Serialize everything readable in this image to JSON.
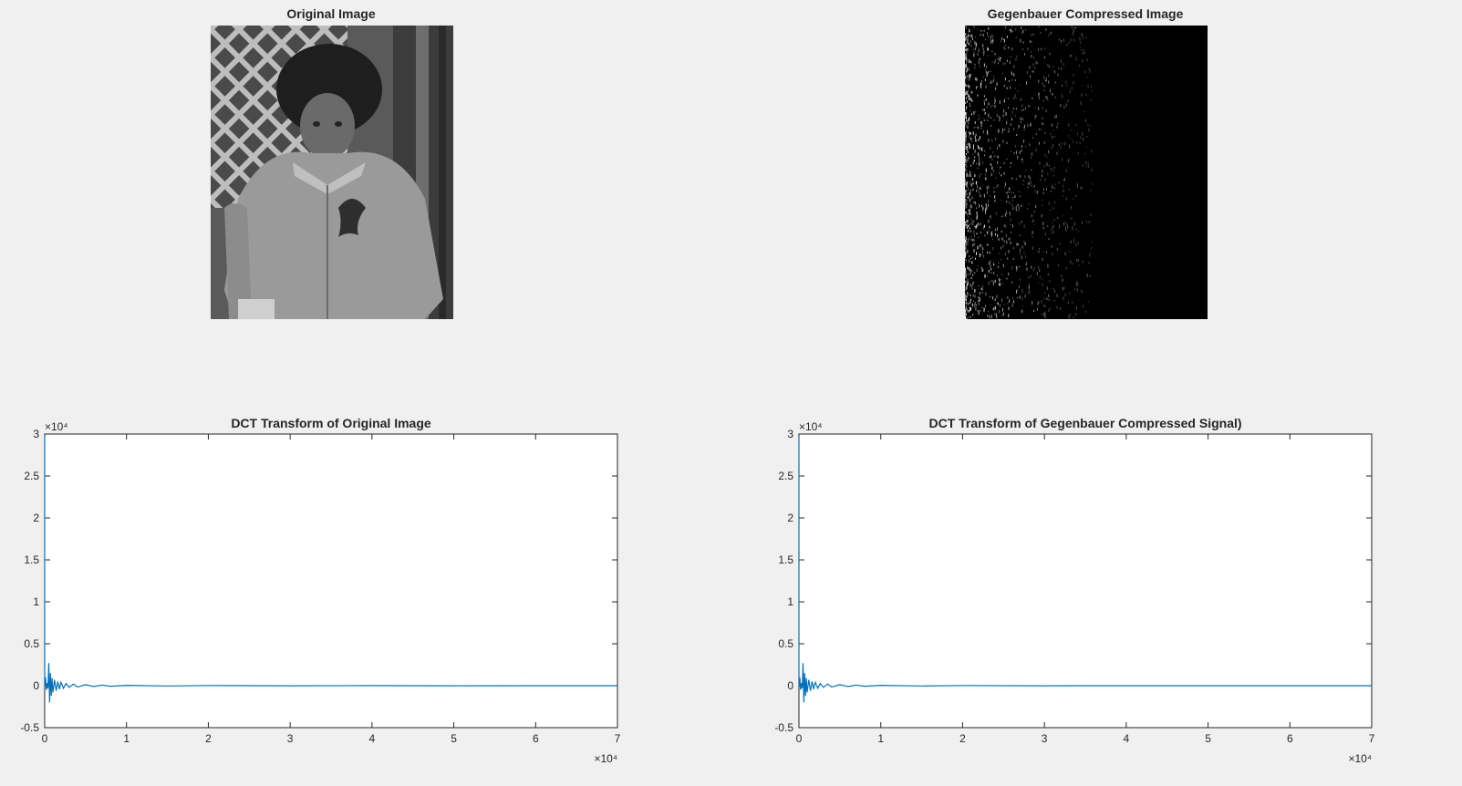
{
  "figure": {
    "background": "#f0f0f0",
    "line_color": "#0072bd"
  },
  "panels": {
    "original_image": {
      "title": "Original Image"
    },
    "compressed_image": {
      "title": "Gegenbauer Compressed Image"
    }
  },
  "chart_data": [
    {
      "type": "line",
      "title": "DCT Transform of Original Image",
      "xlabel": "",
      "ylabel": "",
      "xlim": [
        0,
        70000
      ],
      "ylim": [
        -5000,
        30000
      ],
      "x_ticks": [
        "0",
        "1",
        "2",
        "3",
        "4",
        "5",
        "6",
        "7"
      ],
      "y_ticks": [
        "-0.5",
        "0",
        "0.5",
        "1",
        "1.5",
        "2",
        "2.5",
        "3"
      ],
      "x_exponent": "×10⁴",
      "y_exponent": "×10⁴",
      "grid": false,
      "series": [
        {
          "x": [
            0,
            0,
            100,
            200,
            300,
            400,
            500,
            600,
            700,
            800,
            900,
            1000,
            1200,
            1400,
            1600,
            1800,
            2000,
            2300,
            2600,
            3000,
            3500,
            4000,
            5000,
            6000,
            7000,
            8000,
            10000,
            15000,
            20000,
            30000,
            40000,
            50000,
            60000,
            70000
          ],
          "y": [
            29800,
            0,
            1000,
            -500,
            300,
            -300,
            2700,
            -2000,
            1500,
            -1200,
            900,
            -800,
            700,
            -600,
            500,
            -400,
            400,
            -300,
            250,
            -200,
            200,
            -150,
            120,
            -100,
            80,
            -60,
            40,
            -30,
            20,
            -15,
            10,
            -8,
            5,
            0
          ]
        }
      ]
    },
    {
      "type": "line",
      "title": "DCT Transform of Gegenbauer Compressed Signal)",
      "xlabel": "",
      "ylabel": "",
      "xlim": [
        0,
        70000
      ],
      "ylim": [
        -5000,
        30000
      ],
      "x_ticks": [
        "0",
        "1",
        "2",
        "3",
        "4",
        "5",
        "6",
        "7"
      ],
      "y_ticks": [
        "-0.5",
        "0",
        "0.5",
        "1",
        "1.5",
        "2",
        "2.5",
        "3"
      ],
      "x_exponent": "×10⁴",
      "y_exponent": "×10⁴",
      "grid": false,
      "series": [
        {
          "x": [
            0,
            0,
            100,
            200,
            300,
            400,
            500,
            600,
            700,
            800,
            900,
            1000,
            1200,
            1400,
            1600,
            1800,
            2000,
            2300,
            2600,
            3000,
            3500,
            4000,
            5000,
            6000,
            7000,
            8000,
            10000,
            15000,
            20000,
            30000,
            35000,
            40000,
            50000,
            60000,
            70000
          ],
          "y": [
            29800,
            0,
            1000,
            -500,
            300,
            -300,
            2700,
            -2000,
            1500,
            -1200,
            900,
            -800,
            700,
            -600,
            500,
            -400,
            400,
            -300,
            250,
            -200,
            200,
            -150,
            120,
            -100,
            80,
            -60,
            40,
            -30,
            20,
            -15,
            0,
            0,
            0,
            0,
            0
          ]
        }
      ]
    }
  ]
}
